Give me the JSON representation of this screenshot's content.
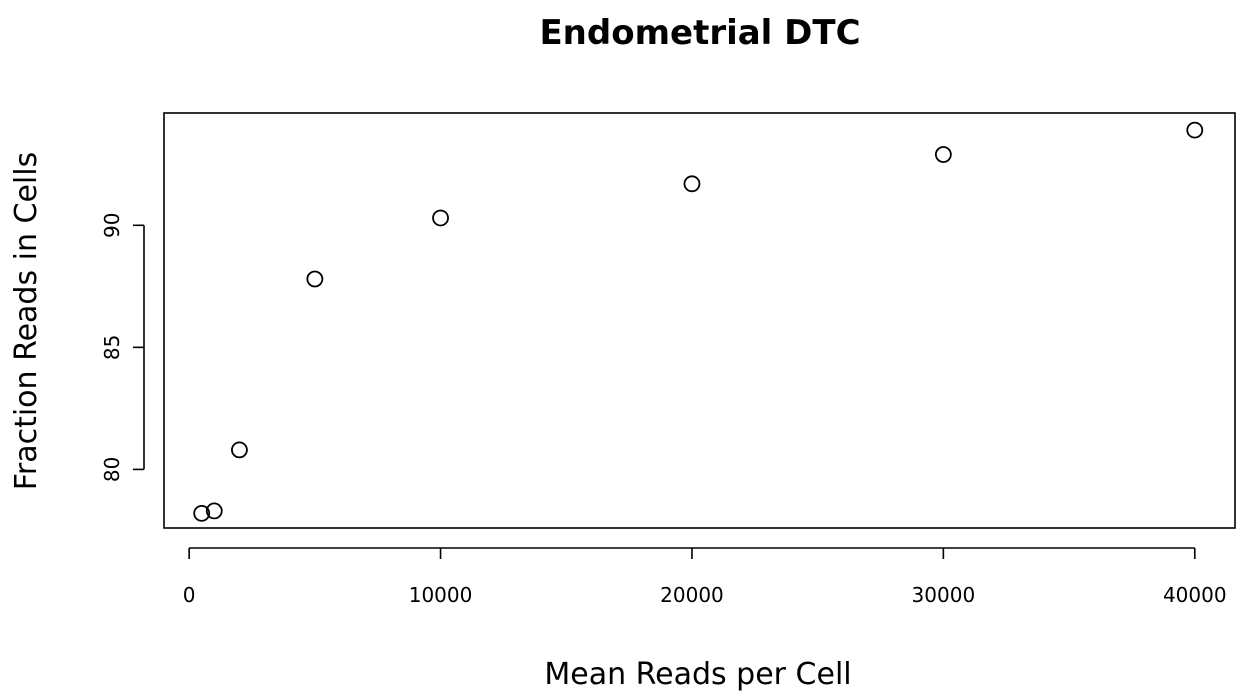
{
  "chart_data": {
    "type": "scatter",
    "title": "Endometrial DTC",
    "xlabel": "Mean Reads per Cell",
    "ylabel": "Fraction Reads in Cells",
    "x": [
      500,
      1000,
      2000,
      5000,
      10000,
      20000,
      30000,
      40000
    ],
    "y": [
      78.2,
      78.3,
      80.8,
      87.8,
      90.3,
      91.7,
      92.9,
      93.9
    ],
    "xlim": [
      -1000,
      41600
    ],
    "ylim": [
      77.6,
      94.6
    ],
    "xticks": [
      0,
      10000,
      20000,
      30000,
      40000
    ],
    "yticks": [
      80,
      85,
      90
    ],
    "marker": "open-circle",
    "grid": false,
    "legend": "none",
    "colors": {
      "points": "#000000",
      "axes": "#000000",
      "background": "#ffffff"
    }
  }
}
